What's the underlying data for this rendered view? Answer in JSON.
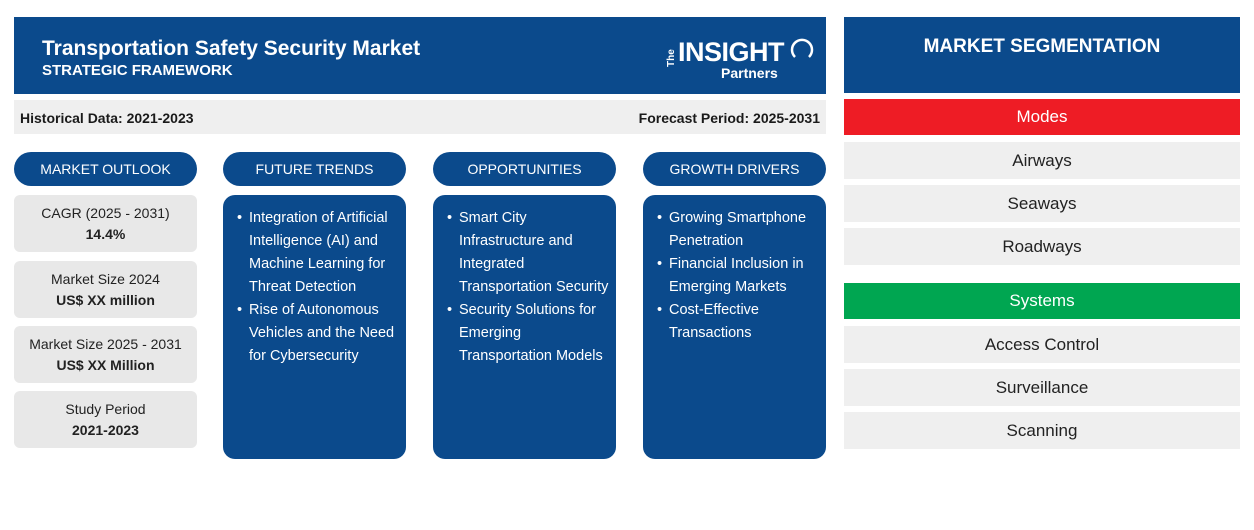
{
  "header": {
    "title": "Transportation Safety Security Market",
    "subtitle": "STRATEGIC FRAMEWORK",
    "logo": {
      "the": "The",
      "insight": "INSIGHT",
      "partners": "Partners"
    }
  },
  "meta": {
    "historical": "Historical Data: 2021-2023",
    "forecast": "Forecast Period: 2025-2031"
  },
  "columns": [
    {
      "heading": "MARKET OUTLOOK"
    },
    {
      "heading": "FUTURE TRENDS",
      "items": [
        "Integration of Artificial Intelligence (AI) and Machine Learning for Threat Detection",
        "Rise of Autonomous Vehicles and the Need for Cybersecurity"
      ]
    },
    {
      "heading": "OPPORTUNITIES",
      "items": [
        "Smart City Infrastructure and Integrated Transportation Security",
        "Security Solutions for Emerging Transportation Models"
      ]
    },
    {
      "heading": "GROWTH DRIVERS",
      "items": [
        "Growing Smartphone Penetration",
        "Financial Inclusion in Emerging Markets",
        "Cost-Effective Transactions"
      ]
    }
  ],
  "outlook": [
    {
      "label": "CAGR (2025 - 2031)",
      "value": "14.4%"
    },
    {
      "label": "Market Size 2024",
      "value": "US$ XX million"
    },
    {
      "label": "Market Size 2025 - 2031",
      "value": "US$ XX Million"
    },
    {
      "label": "Study Period",
      "value": "2021-2023"
    }
  ],
  "segmentation": {
    "title": "MARKET SEGMENTATION",
    "groups": [
      {
        "name": "Modes",
        "color": "#ee1c25",
        "items": [
          "Airways",
          "Seaways",
          "Roadways"
        ]
      },
      {
        "name": "Systems",
        "color": "#00a651",
        "items": [
          "Access Control",
          "Surveillance",
          "Scanning"
        ]
      }
    ]
  },
  "colors": {
    "primary": "#0b4a8c",
    "panel": "#efefef"
  }
}
